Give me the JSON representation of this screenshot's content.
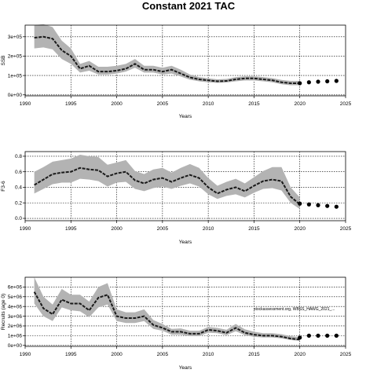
{
  "chart_data": {
    "title": "Constant 2021 TAC",
    "panels": [
      {
        "type": "line",
        "ylabel": "SSB",
        "xlabel": "Years",
        "xlim": [
          1990,
          2025
        ],
        "ylim": [
          -5000,
          360000
        ],
        "xticks": [
          1990,
          1995,
          2000,
          2005,
          2010,
          2015,
          2020,
          2025
        ],
        "yticks": [
          0,
          100000,
          200000,
          300000
        ],
        "yticklabels": [
          "0e+00",
          "1e+05",
          "2e+05",
          "3e+05"
        ],
        "grid": true,
        "note": "",
        "x": [
          1991,
          1992,
          1993,
          1994,
          1995,
          1996,
          1997,
          1998,
          1999,
          2000,
          2001,
          2002,
          2003,
          2004,
          2005,
          2006,
          2007,
          2008,
          2009,
          2010,
          2011,
          2012,
          2013,
          2014,
          2015,
          2016,
          2017,
          2018,
          2019,
          2020
        ],
        "values": [
          295000,
          300000,
          290000,
          230000,
          200000,
          135000,
          150000,
          120000,
          120000,
          125000,
          135000,
          160000,
          130000,
          130000,
          120000,
          130000,
          110000,
          90000,
          80000,
          75000,
          70000,
          72000,
          80000,
          85000,
          85000,
          80000,
          75000,
          65000,
          60000,
          60000
        ],
        "lower": [
          240000,
          245000,
          235000,
          185000,
          160000,
          115000,
          125000,
          105000,
          105000,
          110000,
          120000,
          140000,
          115000,
          115000,
          105000,
          110000,
          95000,
          78000,
          70000,
          65000,
          62000,
          64000,
          70000,
          74000,
          74000,
          70000,
          65000,
          55000,
          50000,
          50000
        ],
        "upper": [
          360000,
          365000,
          350000,
          280000,
          240000,
          160000,
          175000,
          145000,
          145000,
          150000,
          160000,
          185000,
          150000,
          150000,
          140000,
          150000,
          130000,
          105000,
          92000,
          85000,
          80000,
          82000,
          92000,
          96000,
          96000,
          92000,
          86000,
          77000,
          72000,
          72000
        ],
        "projection_x": [
          2020,
          2021,
          2022,
          2023,
          2024
        ],
        "projection_values": [
          60000,
          65000,
          68000,
          70000,
          72000
        ]
      },
      {
        "type": "line",
        "ylabel": "F3-6",
        "xlabel": "Years",
        "xlim": [
          1990,
          2025
        ],
        "ylim": [
          -0.03,
          0.86
        ],
        "xticks": [
          1990,
          1995,
          2000,
          2005,
          2010,
          2015,
          2020,
          2025
        ],
        "yticks": [
          0,
          0.2,
          0.4,
          0.6,
          0.8
        ],
        "yticklabels": [
          "0.0",
          "0.2",
          "0.4",
          "0.6",
          "0.8"
        ],
        "grid": true,
        "note": "",
        "x": [
          1991,
          1992,
          1993,
          1994,
          1995,
          1996,
          1997,
          1998,
          1999,
          2000,
          2001,
          2002,
          2003,
          2004,
          2005,
          2006,
          2007,
          2008,
          2009,
          2010,
          2011,
          2012,
          2013,
          2014,
          2015,
          2016,
          2017,
          2018,
          2019,
          2020
        ],
        "values": [
          0.43,
          0.5,
          0.57,
          0.59,
          0.6,
          0.65,
          0.63,
          0.62,
          0.54,
          0.58,
          0.6,
          0.49,
          0.45,
          0.5,
          0.52,
          0.47,
          0.52,
          0.56,
          0.52,
          0.4,
          0.32,
          0.37,
          0.4,
          0.35,
          0.42,
          0.48,
          0.5,
          0.48,
          0.28,
          0.18
        ],
        "lower": [
          0.32,
          0.38,
          0.44,
          0.46,
          0.46,
          0.51,
          0.5,
          0.48,
          0.41,
          0.46,
          0.47,
          0.38,
          0.35,
          0.39,
          0.41,
          0.38,
          0.42,
          0.45,
          0.41,
          0.31,
          0.25,
          0.29,
          0.31,
          0.27,
          0.33,
          0.38,
          0.39,
          0.36,
          0.2,
          0.12
        ],
        "upper": [
          0.6,
          0.66,
          0.73,
          0.75,
          0.77,
          0.82,
          0.8,
          0.79,
          0.69,
          0.72,
          0.75,
          0.61,
          0.57,
          0.63,
          0.65,
          0.59,
          0.65,
          0.7,
          0.65,
          0.52,
          0.42,
          0.47,
          0.51,
          0.45,
          0.53,
          0.61,
          0.66,
          0.66,
          0.4,
          0.27
        ],
        "projection_x": [
          2020,
          2021,
          2022,
          2023,
          2024
        ],
        "projection_values": [
          0.19,
          0.18,
          0.17,
          0.16,
          0.15
        ]
      },
      {
        "type": "line",
        "ylabel": "Recruits (age 0)",
        "xlabel": "Years",
        "xlim": [
          1990,
          2025
        ],
        "ylim": [
          -100000,
          7000000
        ],
        "xticks": [
          1990,
          1995,
          2000,
          2005,
          2010,
          2015,
          2020,
          2025
        ],
        "yticks": [
          0,
          1000000,
          2000000,
          3000000,
          4000000,
          5000000,
          6000000
        ],
        "yticklabels": [
          "0e+00",
          "1e+06",
          "2e+06",
          "3e+06",
          "4e+06",
          "5e+06",
          "6e+06"
        ],
        "grid": true,
        "note": "stockassessment.org, WBSS_HAWG_2021_...",
        "x": [
          1991,
          1992,
          1993,
          1994,
          1995,
          1996,
          1997,
          1998,
          1999,
          2000,
          2001,
          2002,
          2003,
          2004,
          2005,
          2006,
          2007,
          2008,
          2009,
          2010,
          2011,
          2012,
          2013,
          2014,
          2015,
          2016,
          2017,
          2018,
          2019,
          2020
        ],
        "values": [
          5500000,
          3800000,
          3200000,
          4700000,
          4300000,
          4300000,
          3600000,
          4900000,
          5200000,
          3000000,
          2800000,
          2800000,
          3000000,
          2100000,
          1800000,
          1400000,
          1400000,
          1200000,
          1200000,
          1600000,
          1500000,
          1300000,
          1800000,
          1300000,
          1100000,
          1000000,
          1000000,
          900000,
          700000,
          600000
        ],
        "lower": [
          4300000,
          3000000,
          2500000,
          3900000,
          3600000,
          3500000,
          2900000,
          3900000,
          4200000,
          2500000,
          2300000,
          2300000,
          2500000,
          1700000,
          1500000,
          1100000,
          1100000,
          950000,
          950000,
          1300000,
          1250000,
          1050000,
          1450000,
          1050000,
          880000,
          820000,
          820000,
          730000,
          560000,
          460000
        ],
        "upper": [
          7000000,
          5000000,
          4200000,
          5800000,
          5200000,
          5200000,
          4500000,
          6000000,
          6400000,
          3700000,
          3400000,
          3400000,
          3700000,
          2600000,
          2200000,
          1700000,
          1750000,
          1500000,
          1500000,
          1900000,
          1800000,
          1600000,
          2200000,
          1650000,
          1400000,
          1250000,
          1250000,
          1150000,
          950000,
          850000
        ],
        "projection_x": [
          2020,
          2021,
          2022,
          2023,
          2024
        ],
        "projection_values": [
          800000,
          1000000,
          1000000,
          1000000,
          1000000
        ]
      }
    ]
  }
}
